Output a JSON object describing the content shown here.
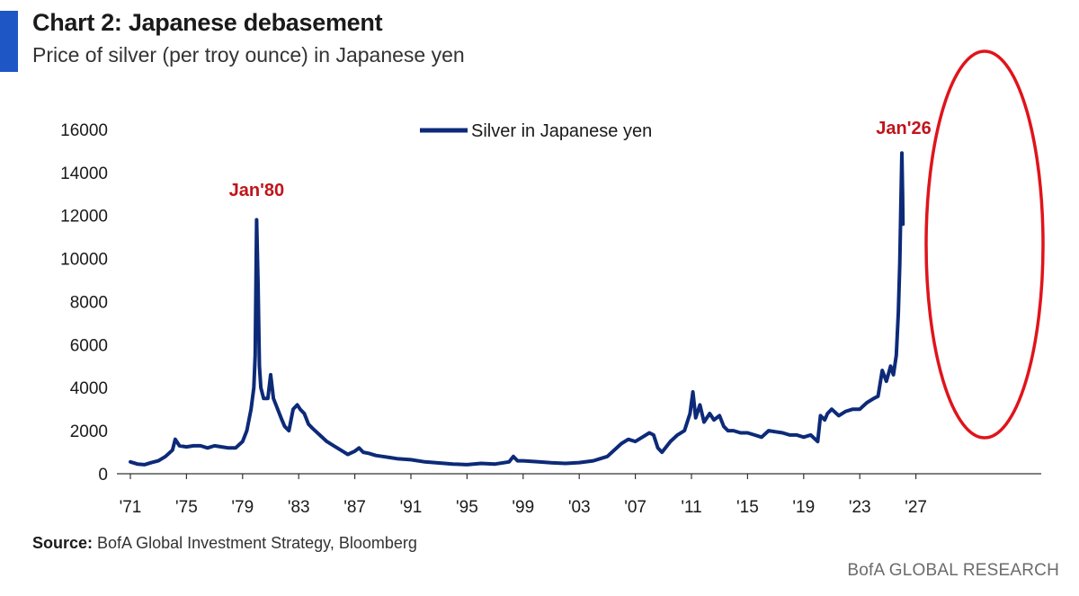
{
  "header": {
    "title": "Chart 2: Japanese debasement",
    "subtitle": "Price of silver (per troy ounce) in Japanese yen"
  },
  "footer": {
    "source_label": "Source:",
    "source_text": " BofA Global Investment Strategy, Bloomberg",
    "brand": "BofA GLOBAL RESEARCH"
  },
  "colors": {
    "accent": "#1f56c6",
    "series": "#0d2a78",
    "annotation": "#c0141b",
    "highlight_ellipse": "#e0141b",
    "axis": "#333333"
  },
  "chart_data": {
    "type": "line",
    "title": "Chart 2: Japanese debasement",
    "subtitle": "Price of silver (per troy ounce) in Japanese yen",
    "xlabel": "",
    "ylabel": "",
    "xlim": [
      1971,
      2028
    ],
    "ylim": [
      0,
      16000
    ],
    "x_ticks": [
      1971,
      1975,
      1979,
      1983,
      1987,
      1991,
      1995,
      1999,
      2003,
      2007,
      2011,
      2015,
      2019,
      2023,
      2027
    ],
    "x_tick_labels": [
      "'71",
      "'75",
      "'79",
      "'83",
      "'87",
      "'91",
      "'95",
      "'99",
      "'03",
      "'07",
      "'11",
      "'15",
      "'19",
      "'23",
      "'27"
    ],
    "y_ticks": [
      0,
      2000,
      4000,
      6000,
      8000,
      10000,
      12000,
      14000,
      16000
    ],
    "y_tick_labels": [
      "0",
      "2000",
      "4000",
      "6000",
      "8000",
      "10000",
      "12000",
      "14000",
      "16000"
    ],
    "grid": false,
    "legend": "top-center",
    "annotations": [
      {
        "text": "Jan'80",
        "x": 1980.0,
        "y": 11800
      },
      {
        "text": "Jan'26",
        "x": 2026.0,
        "y": 14900
      }
    ],
    "series": [
      {
        "name": "Silver in Japanese yen",
        "x": [
          1971.0,
          1971.5,
          1972.0,
          1972.5,
          1973.0,
          1973.5,
          1974.0,
          1974.2,
          1974.5,
          1975.0,
          1975.5,
          1976.0,
          1976.5,
          1977.0,
          1977.5,
          1978.0,
          1978.5,
          1979.0,
          1979.3,
          1979.6,
          1979.8,
          1979.9,
          1980.0,
          1980.1,
          1980.2,
          1980.3,
          1980.5,
          1980.8,
          1981.0,
          1981.2,
          1981.5,
          1981.8,
          1982.0,
          1982.3,
          1982.6,
          1982.9,
          1983.1,
          1983.4,
          1983.7,
          1984.0,
          1984.5,
          1985.0,
          1985.5,
          1986.0,
          1986.5,
          1987.0,
          1987.3,
          1987.6,
          1988.0,
          1988.5,
          1989.0,
          1989.5,
          1990.0,
          1991.0,
          1992.0,
          1993.0,
          1994.0,
          1995.0,
          1996.0,
          1997.0,
          1998.0,
          1998.3,
          1998.6,
          1999.0,
          2000.0,
          2001.0,
          2002.0,
          2003.0,
          2004.0,
          2005.0,
          2006.0,
          2006.5,
          2007.0,
          2007.5,
          2008.0,
          2008.3,
          2008.6,
          2008.9,
          2009.5,
          2010.0,
          2010.5,
          2010.9,
          2011.1,
          2011.3,
          2011.6,
          2011.9,
          2012.3,
          2012.6,
          2013.0,
          2013.3,
          2013.6,
          2014.0,
          2014.5,
          2015.0,
          2015.5,
          2016.0,
          2016.5,
          2017.0,
          2017.5,
          2018.0,
          2018.5,
          2019.0,
          2019.5,
          2020.0,
          2020.2,
          2020.5,
          2020.7,
          2021.0,
          2021.5,
          2022.0,
          2022.5,
          2023.0,
          2023.5,
          2024.0,
          2024.3,
          2024.6,
          2024.9,
          2025.2,
          2025.4,
          2025.6,
          2025.75,
          2025.85,
          2025.92,
          2026.0,
          2026.05,
          2026.08
        ],
        "values": [
          550,
          450,
          420,
          520,
          600,
          800,
          1100,
          1600,
          1300,
          1250,
          1300,
          1300,
          1200,
          1300,
          1250,
          1200,
          1200,
          1500,
          2000,
          3000,
          4000,
          5500,
          11800,
          8800,
          5000,
          4000,
          3500,
          3500,
          4600,
          3500,
          3000,
          2500,
          2200,
          2000,
          3000,
          3200,
          3000,
          2800,
          2300,
          2100,
          1800,
          1500,
          1300,
          1100,
          900,
          1050,
          1200,
          1000,
          950,
          850,
          800,
          750,
          700,
          650,
          550,
          500,
          450,
          420,
          480,
          450,
          550,
          800,
          600,
          600,
          560,
          510,
          480,
          520,
          600,
          800,
          1400,
          1600,
          1500,
          1700,
          1900,
          1800,
          1200,
          1000,
          1500,
          1800,
          2000,
          2800,
          3800,
          2600,
          3200,
          2400,
          2800,
          2500,
          2700,
          2200,
          2000,
          2000,
          1900,
          1900,
          1800,
          1700,
          2000,
          1950,
          1900,
          1800,
          1800,
          1700,
          1800,
          1500,
          2700,
          2500,
          2800,
          3000,
          2700,
          2900,
          3000,
          3000,
          3300,
          3500,
          3600,
          4800,
          4300,
          5000,
          4600,
          5500,
          7500,
          9800,
          12300,
          14900,
          13000,
          11600
        ]
      }
    ]
  }
}
